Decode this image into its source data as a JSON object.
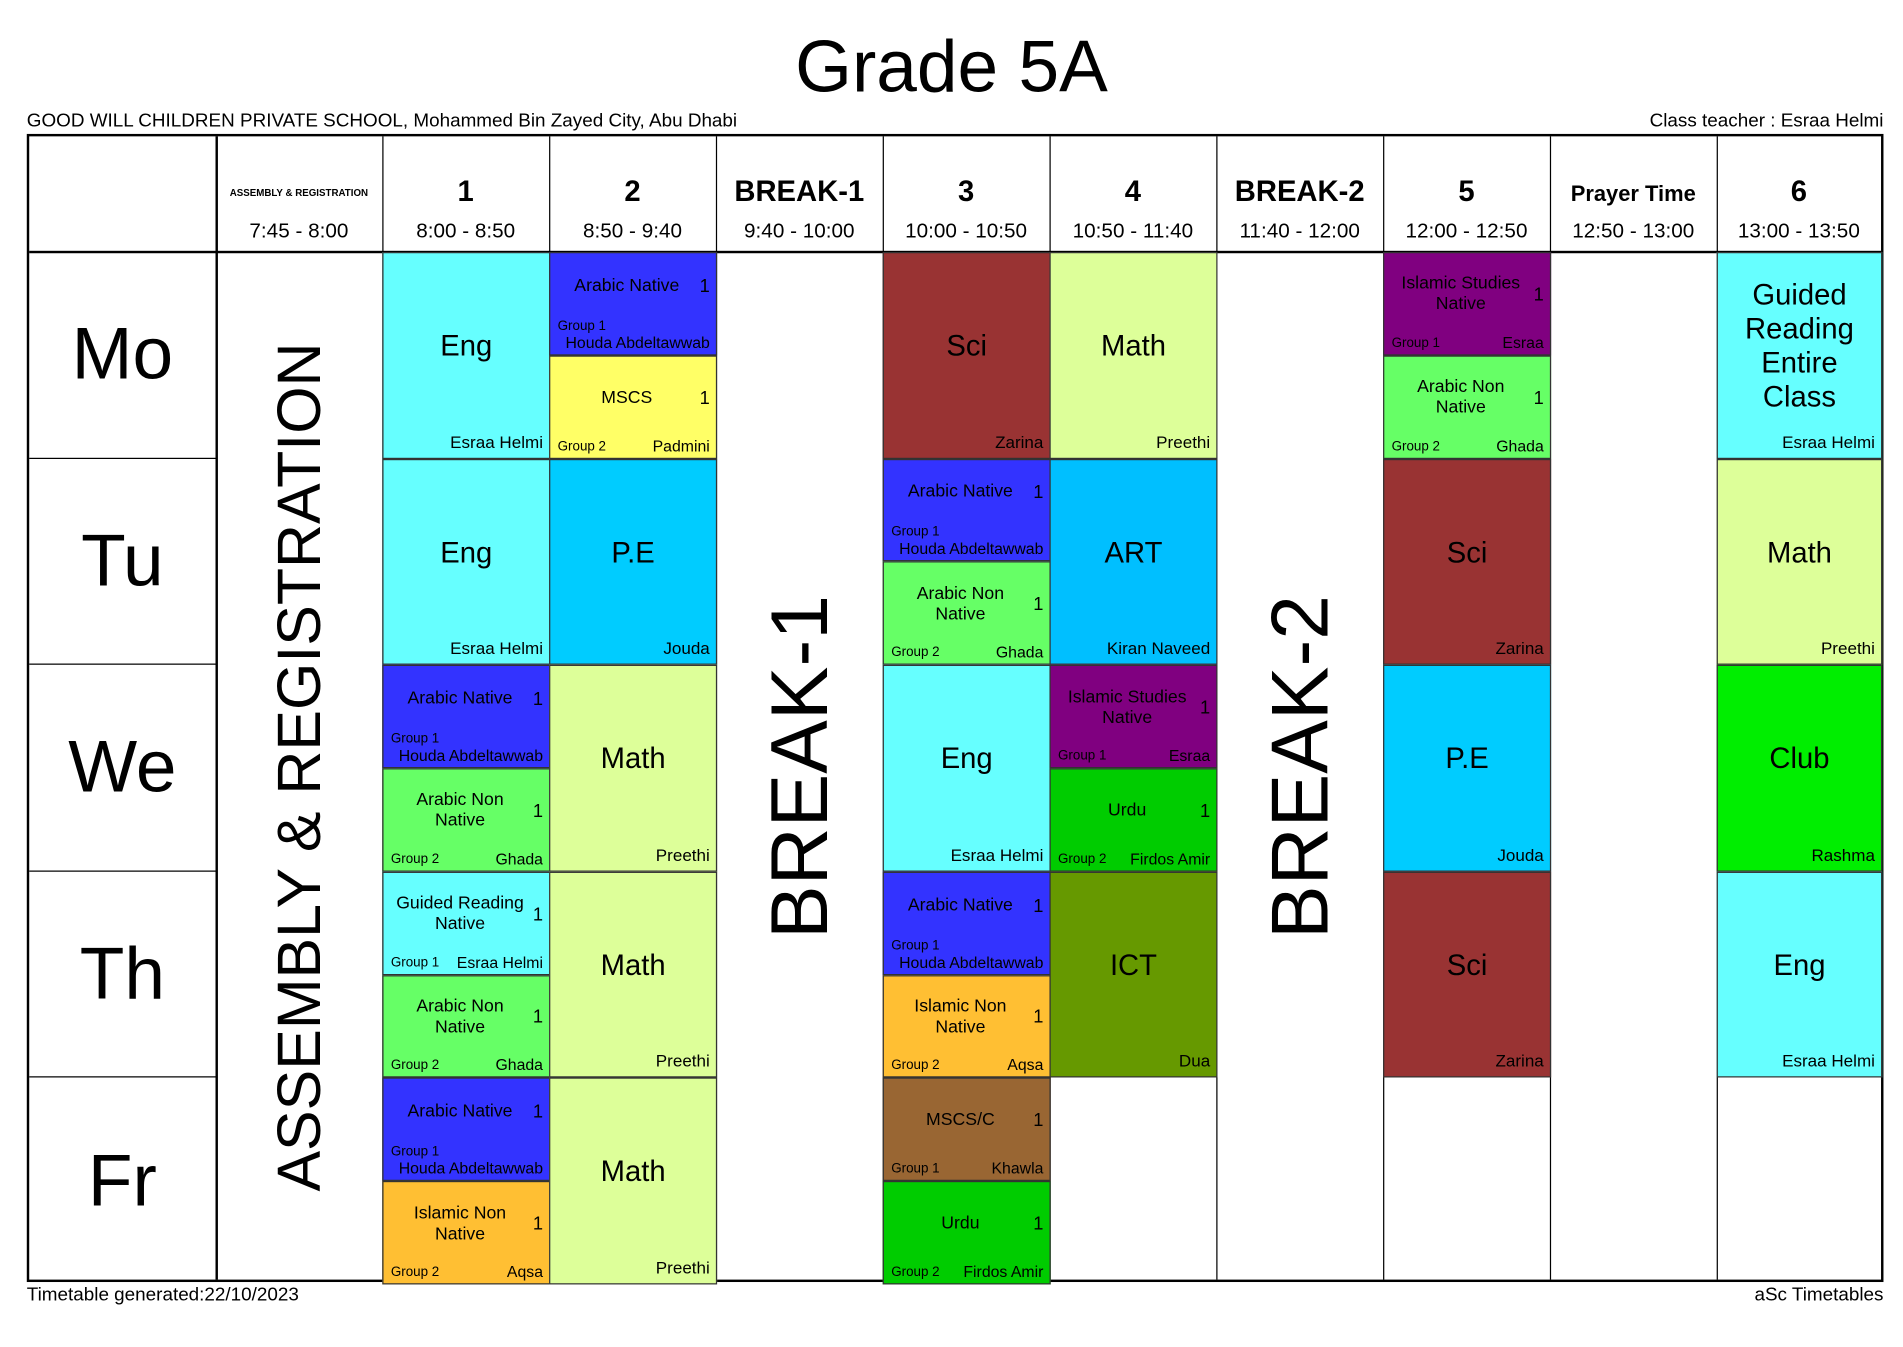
{
  "title": "Grade 5A",
  "school": "GOOD WILL CHILDREN PRIVATE SCHOOL, Mohammed Bin Zayed City, Abu Dhabi",
  "class_teacher": "Class teacher : Esraa Helmi",
  "footer_left": "Timetable generated:22/10/2023",
  "footer_right": "aSc Timetables",
  "days": [
    "Mo",
    "Tu",
    "We",
    "Th",
    "Fr"
  ],
  "columns": [
    {
      "label": "ASSEMBLY & REGISTRATION",
      "time": "7:45 - 8:00",
      "kind": "small",
      "span_text": "ASSEMBLY & REGISTRATION"
    },
    {
      "label": "1",
      "time": "8:00 - 8:50"
    },
    {
      "label": "2",
      "time": "8:50 - 9:40"
    },
    {
      "label": "BREAK-1",
      "time": "9:40 - 10:00",
      "span_text": "BREAK-1"
    },
    {
      "label": "3",
      "time": "10:00 - 10:50"
    },
    {
      "label": "4",
      "time": "10:50 - 11:40"
    },
    {
      "label": "BREAK-2",
      "time": "11:40 - 12:00",
      "span_text": "BREAK-2"
    },
    {
      "label": "5",
      "time": "12:00 - 12:50"
    },
    {
      "label": "Prayer Time",
      "time": "12:50 - 13:00",
      "kind": "mid"
    },
    {
      "label": "6",
      "time": "13:00 - 13:50"
    }
  ],
  "colors": {
    "eng": "#66ffff",
    "arabic_native": "#3333ff",
    "mscs": "#ffff66",
    "math": "#ddff99",
    "sci": "#993333",
    "pe": "#00ccff",
    "art": "#00bfff",
    "arabic_non_native": "#66ff66",
    "islamic_native": "#800080",
    "urdu": "#00cc00",
    "ict": "#669900",
    "islamic_non_native": "#ffbf33",
    "mscs_c": "#996633",
    "club": "#00ee00"
  },
  "lessons": [
    {
      "day": 0,
      "col": 1,
      "pos": "full",
      "subject": "Eng",
      "teacher": "Esraa Helmi",
      "color": "#66ffff"
    },
    {
      "day": 0,
      "col": 2,
      "pos": "top",
      "subject": "Arabic Native",
      "count": "1",
      "group": "Group 1",
      "teacher": "Houda Abdeltawwab",
      "color": "#3333ff"
    },
    {
      "day": 0,
      "col": 2,
      "pos": "bottom",
      "subject": "MSCS",
      "count": "1",
      "group": "Group 2",
      "teacher": "Padmini",
      "color": "#ffff66"
    },
    {
      "day": 0,
      "col": 4,
      "pos": "full",
      "subject": "Sci",
      "teacher": "Zarina",
      "color": "#993333"
    },
    {
      "day": 0,
      "col": 5,
      "pos": "full",
      "subject": "Math",
      "teacher": "Preethi",
      "color": "#ddff99"
    },
    {
      "day": 0,
      "col": 7,
      "pos": "top",
      "subject": "Islamic Studies Native",
      "count": "1",
      "group": "Group 1",
      "teacher": "Esraa",
      "color": "#800080"
    },
    {
      "day": 0,
      "col": 7,
      "pos": "bottom",
      "subject": "Arabic Non Native",
      "count": "1",
      "group": "Group 2",
      "teacher": "Ghada",
      "color": "#66ff66"
    },
    {
      "day": 0,
      "col": 9,
      "pos": "full",
      "subject": "Guided Reading Entire Class",
      "teacher": "Esraa Helmi",
      "color": "#66ffff"
    },
    {
      "day": 1,
      "col": 1,
      "pos": "full",
      "subject": "Eng",
      "teacher": "Esraa Helmi",
      "color": "#66ffff"
    },
    {
      "day": 1,
      "col": 2,
      "pos": "full",
      "subject": "P.E",
      "teacher": "Jouda",
      "color": "#00ccff"
    },
    {
      "day": 1,
      "col": 4,
      "pos": "top",
      "subject": "Arabic Native",
      "count": "1",
      "group": "Group 1",
      "teacher": "Houda Abdeltawwab",
      "color": "#3333ff"
    },
    {
      "day": 1,
      "col": 4,
      "pos": "bottom",
      "subject": "Arabic Non Native",
      "count": "1",
      "group": "Group 2",
      "teacher": "Ghada",
      "color": "#66ff66"
    },
    {
      "day": 1,
      "col": 5,
      "pos": "full",
      "subject": "ART",
      "teacher": "Kiran Naveed",
      "color": "#00bfff"
    },
    {
      "day": 1,
      "col": 7,
      "pos": "full",
      "subject": "Sci",
      "teacher": "Zarina",
      "color": "#993333"
    },
    {
      "day": 1,
      "col": 9,
      "pos": "full",
      "subject": "Math",
      "teacher": "Preethi",
      "color": "#ddff99"
    },
    {
      "day": 2,
      "col": 1,
      "pos": "top",
      "subject": "Arabic Native",
      "count": "1",
      "group": "Group 1",
      "teacher": "Houda Abdeltawwab",
      "color": "#3333ff"
    },
    {
      "day": 2,
      "col": 1,
      "pos": "bottom",
      "subject": "Arabic Non Native",
      "count": "1",
      "group": "Group 2",
      "teacher": "Ghada",
      "color": "#66ff66"
    },
    {
      "day": 2,
      "col": 2,
      "pos": "full",
      "subject": "Math",
      "teacher": "Preethi",
      "color": "#ddff99"
    },
    {
      "day": 2,
      "col": 4,
      "pos": "full",
      "subject": "Eng",
      "teacher": "Esraa Helmi",
      "color": "#66ffff"
    },
    {
      "day": 2,
      "col": 5,
      "pos": "top",
      "subject": "Islamic Studies Native",
      "count": "1",
      "group": "Group 1",
      "teacher": "Esraa",
      "color": "#800080"
    },
    {
      "day": 2,
      "col": 5,
      "pos": "bottom",
      "subject": "Urdu",
      "count": "1",
      "group": "Group 2",
      "teacher": "Firdos Amir",
      "color": "#00cc00"
    },
    {
      "day": 2,
      "col": 7,
      "pos": "full",
      "subject": "P.E",
      "teacher": "Jouda",
      "color": "#00ccff"
    },
    {
      "day": 2,
      "col": 9,
      "pos": "full",
      "subject": "Club",
      "teacher": "Rashma",
      "color": "#00ee00"
    },
    {
      "day": 3,
      "col": 1,
      "pos": "top",
      "subject": "Guided Reading Native",
      "count": "1",
      "group": "Group 1",
      "teacher": "Esraa Helmi",
      "color": "#66ffff"
    },
    {
      "day": 3,
      "col": 1,
      "pos": "bottom",
      "subject": "Arabic Non Native",
      "count": "1",
      "group": "Group 2",
      "teacher": "Ghada",
      "color": "#66ff66"
    },
    {
      "day": 3,
      "col": 2,
      "pos": "full",
      "subject": "Math",
      "teacher": "Preethi",
      "color": "#ddff99"
    },
    {
      "day": 3,
      "col": 4,
      "pos": "top",
      "subject": "Arabic Native",
      "count": "1",
      "group": "Group 1",
      "teacher": "Houda Abdeltawwab",
      "color": "#3333ff"
    },
    {
      "day": 3,
      "col": 4,
      "pos": "bottom",
      "subject": "Islamic Non Native",
      "count": "1",
      "group": "Group 2",
      "teacher": "Aqsa",
      "color": "#ffbf33"
    },
    {
      "day": 3,
      "col": 5,
      "pos": "full",
      "subject": "ICT",
      "teacher": "Dua",
      "color": "#669900"
    },
    {
      "day": 3,
      "col": 7,
      "pos": "full",
      "subject": "Sci",
      "teacher": "Zarina",
      "color": "#993333"
    },
    {
      "day": 3,
      "col": 9,
      "pos": "full",
      "subject": "Eng",
      "teacher": "Esraa Helmi",
      "color": "#66ffff"
    },
    {
      "day": 4,
      "col": 1,
      "pos": "top",
      "subject": "Arabic Native",
      "count": "1",
      "group": "Group 1",
      "teacher": "Houda Abdeltawwab",
      "color": "#3333ff"
    },
    {
      "day": 4,
      "col": 1,
      "pos": "bottom",
      "subject": "Islamic Non Native",
      "count": "1",
      "group": "Group 2",
      "teacher": "Aqsa",
      "color": "#ffbf33"
    },
    {
      "day": 4,
      "col": 2,
      "pos": "full",
      "subject": "Math",
      "teacher": "Preethi",
      "color": "#ddff99"
    },
    {
      "day": 4,
      "col": 4,
      "pos": "top",
      "subject": "MSCS/C",
      "count": "1",
      "group": "Group 1",
      "teacher": "Khawla",
      "color": "#996633"
    },
    {
      "day": 4,
      "col": 4,
      "pos": "bottom",
      "subject": "Urdu",
      "count": "1",
      "group": "Group 2",
      "teacher": "Firdos Amir",
      "color": "#00cc00"
    }
  ]
}
